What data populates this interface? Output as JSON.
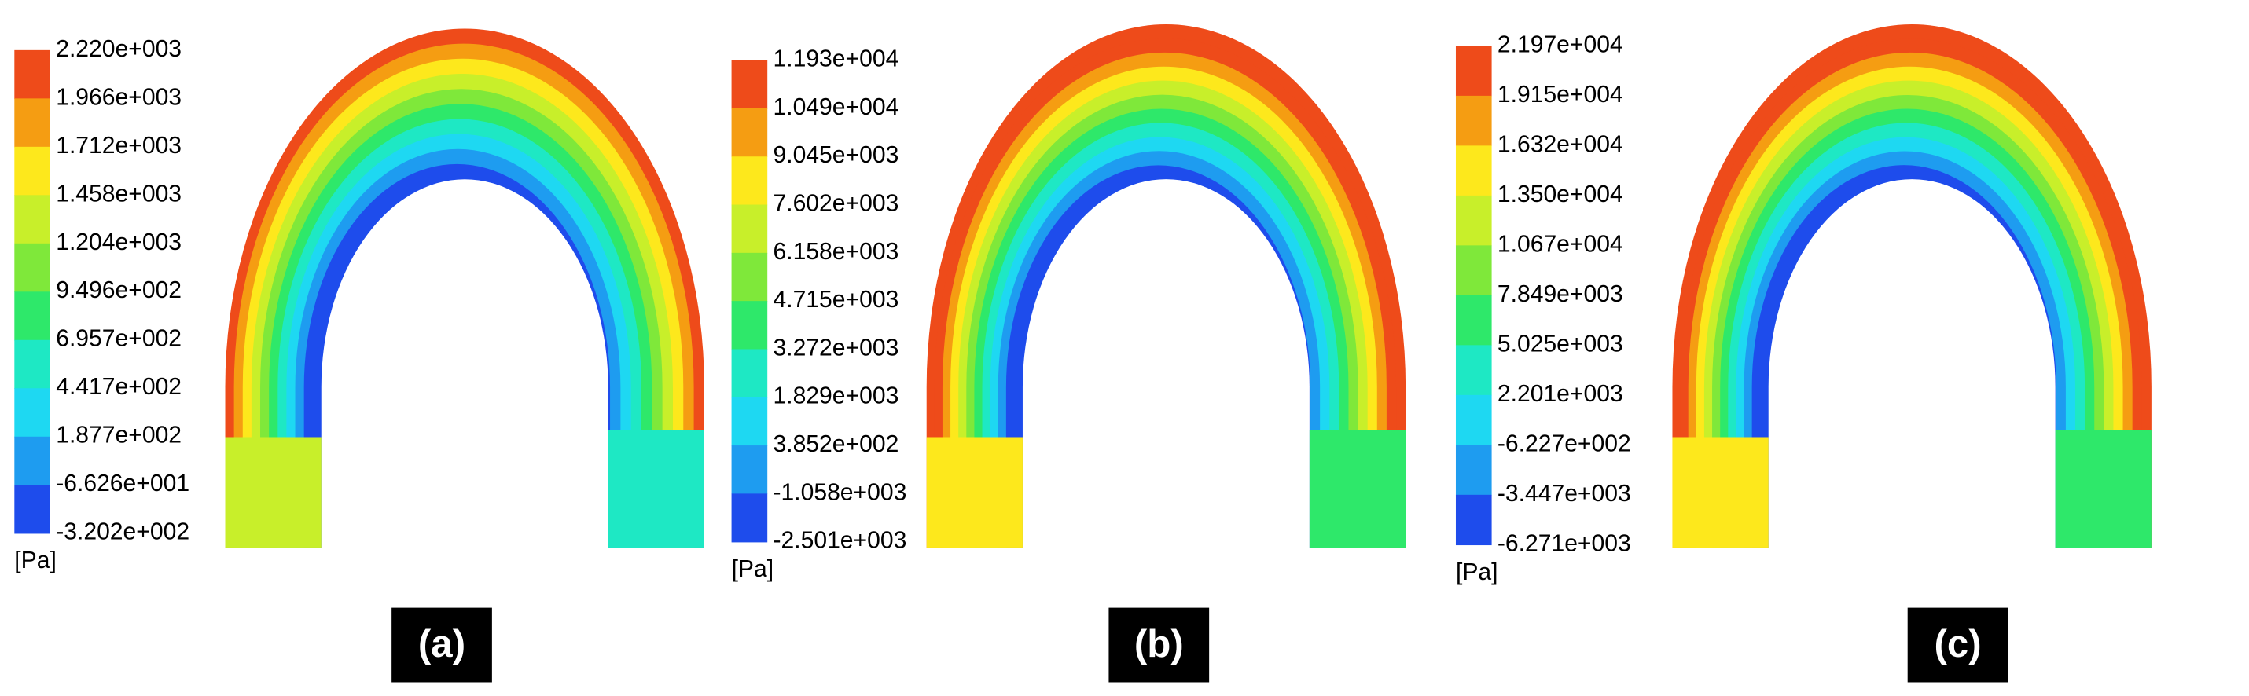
{
  "panels": [
    {
      "label": "(a)",
      "unit": "[Pa]",
      "legend": [
        "2.220e+003",
        "1.966e+003",
        "1.712e+003",
        "1.458e+003",
        "1.204e+003",
        "9.496e+002",
        "6.957e+002",
        "4.417e+002",
        "1.877e+002",
        "-6.626e+001",
        "-3.202e+002"
      ]
    },
    {
      "label": "(b)",
      "unit": "[Pa]",
      "legend": [
        "1.193e+004",
        "1.049e+004",
        "9.045e+003",
        "7.602e+003",
        "6.158e+003",
        "4.715e+003",
        "3.272e+003",
        "1.829e+003",
        "3.852e+002",
        "-1.058e+003",
        "-2.501e+003"
      ]
    },
    {
      "label": "(c)",
      "unit": "[Pa]",
      "legend": [
        "2.197e+004",
        "1.915e+004",
        "1.632e+004",
        "1.350e+004",
        "1.067e+004",
        "7.849e+003",
        "5.025e+003",
        "2.201e+003",
        "-6.227e+002",
        "-3.447e+003",
        "-6.271e+003"
      ]
    }
  ]
}
